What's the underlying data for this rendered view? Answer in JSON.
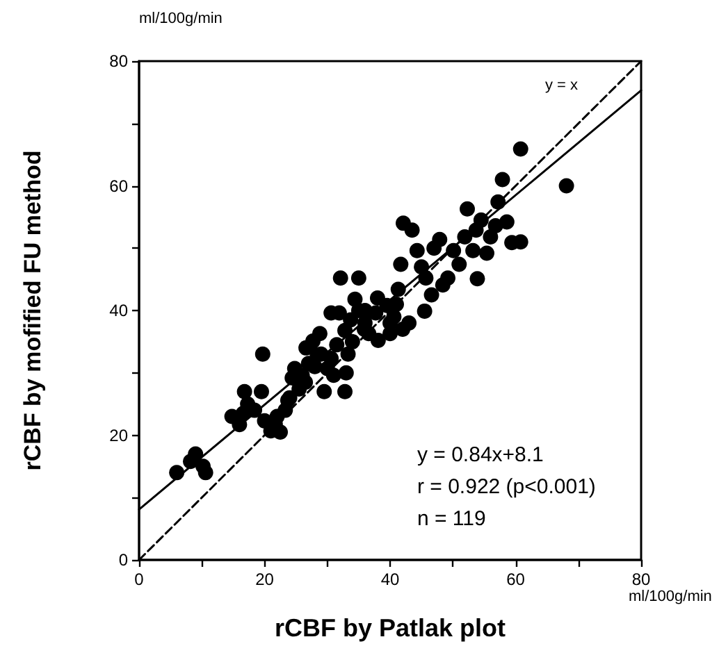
{
  "chart_data": {
    "type": "scatter",
    "xlabel": "rCBF by Patlak plot",
    "ylabel": "rCBF by mofified FU method",
    "annotations": [
      "ml/100g/min",
      "ml/100g/min",
      "y = x",
      "y = 0.84x+8.1",
      "r = 0.922 (p<0.001)",
      "n = 119"
    ],
    "xlim": [
      0,
      80
    ],
    "ylim": [
      0,
      80
    ],
    "xticks": [
      0,
      {
        "value": 10,
        "label": null
      },
      20,
      {
        "value": 30,
        "label": null
      },
      40,
      {
        "value": 50,
        "label": null
      },
      60,
      {
        "value": 70,
        "label": null
      },
      80
    ],
    "yticks": [
      0,
      {
        "value": 10,
        "label": null
      },
      20,
      {
        "value": 30,
        "label": null
      },
      40,
      {
        "value": 50,
        "label": null
      },
      60,
      {
        "value": 70,
        "label": null
      },
      80
    ],
    "grid": false,
    "series": [
      {
        "color": "#000000",
        "marker": "circle",
        "x": [
          6,
          8.2,
          9,
          10.2,
          10.6,
          14.8,
          16.6,
          17.3,
          16,
          18.4,
          19.5,
          19.7,
          16.8,
          20,
          21,
          21.7,
          22,
          23.3,
          23.7,
          24.4,
          24.8,
          25.5,
          26,
          27,
          26.6,
          27.7,
          28.4,
          28.8,
          29.5,
          30,
          30.6,
          31,
          31.5,
          31.9,
          30.6,
          32.8,
          33.3,
          33.7,
          34.4,
          32.1,
          35,
          35.9,
          36.6,
          37.7,
          38.1,
          39.5,
          40,
          40.6,
          41.3,
          41.7,
          42.1,
          43.5,
          44.3,
          45,
          45.7,
          45.5,
          46.6,
          47,
          47.9,
          48.4,
          49.2,
          50.1,
          51,
          51.9,
          52.3,
          53.2,
          53.7,
          54.5,
          55.4,
          56,
          56.8,
          57.2,
          57.9,
          58.6,
          59.4,
          60.8,
          60.8,
          68.1,
          53.9,
          32.8,
          22.5,
          24,
          26.5,
          28,
          29,
          33,
          34,
          35,
          36,
          40,
          41,
          42,
          36,
          38,
          43
        ],
        "values": [
          14,
          15.8,
          17,
          15,
          14,
          23,
          23.5,
          25,
          21.7,
          24,
          27,
          33,
          27,
          22.3,
          20.7,
          21.8,
          23,
          24,
          25.6,
          29.2,
          30.7,
          27.4,
          29.6,
          31.5,
          34,
          35.1,
          32.9,
          36.3,
          27,
          30.7,
          32.3,
          29.6,
          34.5,
          39.6,
          39.6,
          36.8,
          33,
          38.5,
          41.8,
          45.2,
          45.2,
          37,
          36.3,
          39.6,
          35.2,
          40.8,
          36.3,
          39,
          43.4,
          47.4,
          54,
          52.9,
          49.6,
          47,
          45.2,
          39.9,
          42.5,
          50,
          51.4,
          44.1,
          45.2,
          49.6,
          47.4,
          51.8,
          56.3,
          49.6,
          52.9,
          54.5,
          49.2,
          51.8,
          53.6,
          57.4,
          61,
          54.2,
          50.9,
          65.9,
          51,
          60,
          45.1,
          27,
          20.5,
          26,
          28.5,
          31,
          33,
          30,
          35,
          40,
          38,
          38,
          41,
          37,
          40,
          42,
          38
        ]
      },
      {
        "type": "line",
        "color": "#000000",
        "marker": "none",
        "line_style": "solid",
        "x": [
          0,
          80
        ],
        "values": [
          8.1,
          75.3
        ]
      },
      {
        "type": "line",
        "color": "#000000",
        "marker": "none",
        "line_style": "dashed",
        "x": [
          0,
          80
        ],
        "values": [
          0,
          80
        ]
      }
    ]
  }
}
